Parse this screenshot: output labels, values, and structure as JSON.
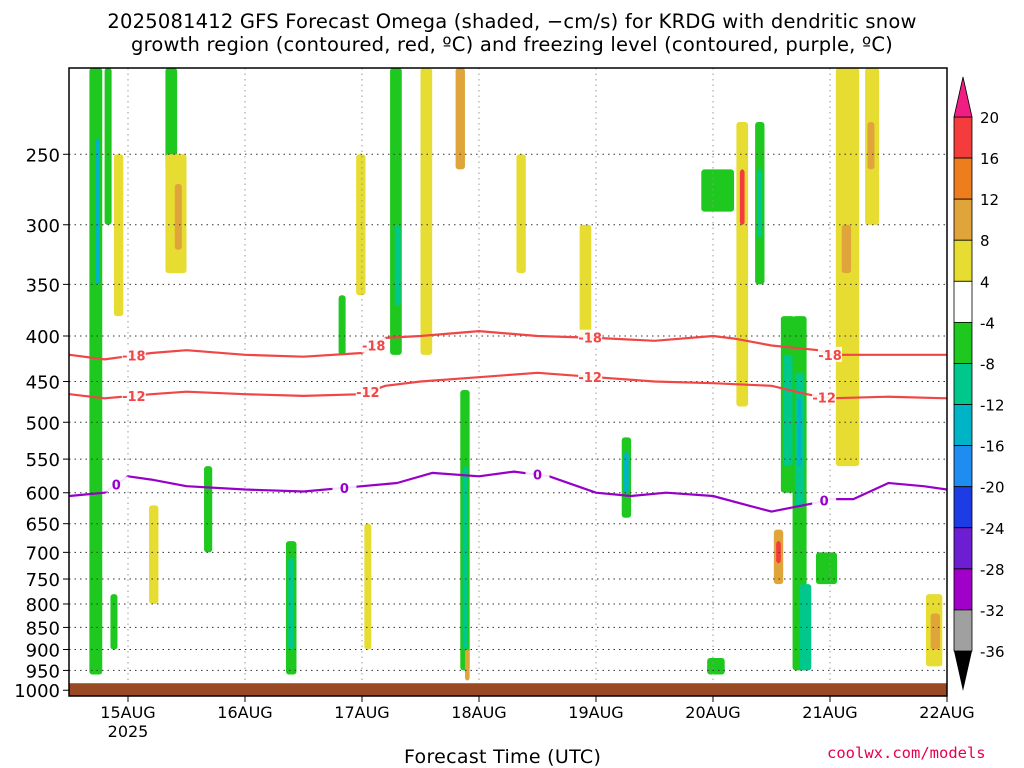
{
  "title": {
    "line1": "2025081412 GFS Forecast Omega (shaded, −cm/s) for KRDG with dendritic snow",
    "line2": "growth region (contoured, red, ºC) and freezing level (contoured, purple, ºC)"
  },
  "xlabel": "Forecast Time (UTC)",
  "credit": "coolwx.com/models",
  "chart_data": {
    "type": "heatmap",
    "x_unit": "forecast time (UTC)",
    "x_ticks": [
      {
        "t": 0.0,
        "label": "15AUG"
      },
      {
        "t": 1.0,
        "label": "16AUG"
      },
      {
        "t": 2.0,
        "label": "17AUG"
      },
      {
        "t": 3.0,
        "label": "18AUG"
      },
      {
        "t": 4.0,
        "label": "19AUG"
      },
      {
        "t": 5.0,
        "label": "20AUG"
      },
      {
        "t": 6.0,
        "label": "21AUG"
      },
      {
        "t": 7.0,
        "label": "22AUG"
      }
    ],
    "x_year_label": "2025",
    "xlim_days": [
      -0.5,
      7.0
    ],
    "y_label": "",
    "y_ticks": [
      250,
      300,
      350,
      400,
      450,
      500,
      550,
      600,
      650,
      700,
      750,
      800,
      850,
      900,
      950,
      1000
    ],
    "ylim_hpa": [
      200,
      1015
    ],
    "y_log": true,
    "grid": true,
    "ground_level_hpa": 982,
    "colorbar": {
      "ticks": [
        20,
        16,
        12,
        8,
        4,
        -4,
        -8,
        -12,
        -16,
        -20,
        -24,
        -28,
        -32,
        -36
      ],
      "bands": [
        {
          "from": 16,
          "to": 20,
          "color": "#f53c3c"
        },
        {
          "from": 12,
          "to": 16,
          "color": "#ee7d1e"
        },
        {
          "from": 8,
          "to": 12,
          "color": "#e0a53a"
        },
        {
          "from": 4,
          "to": 8,
          "color": "#e6dc32"
        },
        {
          "from": -4,
          "to": 4,
          "color": "#ffffff"
        },
        {
          "from": -8,
          "to": -4,
          "color": "#1ec81e"
        },
        {
          "from": -12,
          "to": -8,
          "color": "#00c88c"
        },
        {
          "from": -16,
          "to": -12,
          "color": "#00b4c8"
        },
        {
          "from": -20,
          "to": -16,
          "color": "#1e8cf0"
        },
        {
          "from": -24,
          "to": -20,
          "color": "#1e3ce6"
        },
        {
          "from": -28,
          "to": -24,
          "color": "#6e1ed2"
        },
        {
          "from": -32,
          "to": -28,
          "color": "#a000c8"
        },
        {
          "from": -36,
          "to": -32,
          "color": "#a0a0a0"
        }
      ],
      "top_arrow_color": "#f01e82",
      "bottom_arrow_color": "#000000"
    },
    "omega_cells": [
      {
        "t0": -0.33,
        "t1": -0.22,
        "p0": 200,
        "p1": 960,
        "v": -6
      },
      {
        "t0": -0.28,
        "t1": -0.24,
        "p0": 240,
        "p1": 350,
        "v": -14
      },
      {
        "t0": -0.2,
        "t1": -0.14,
        "p0": 200,
        "p1": 300,
        "v": -6
      },
      {
        "t0": -0.12,
        "t1": -0.04,
        "p0": 250,
        "p1": 380,
        "v": 5
      },
      {
        "t0": 0.32,
        "t1": 0.42,
        "p0": 200,
        "p1": 260,
        "v": -6
      },
      {
        "t0": 0.32,
        "t1": 0.5,
        "p0": 250,
        "p1": 340,
        "v": 5
      },
      {
        "t0": 0.4,
        "t1": 0.46,
        "p0": 270,
        "p1": 320,
        "v": 9
      },
      {
        "t0": 1.8,
        "t1": 1.86,
        "p0": 360,
        "p1": 420,
        "v": -6
      },
      {
        "t0": 2.24,
        "t1": 2.34,
        "p0": 200,
        "p1": 420,
        "v": -6
      },
      {
        "t0": 2.28,
        "t1": 2.33,
        "p0": 300,
        "p1": 370,
        "v": -12
      },
      {
        "t0": 2.5,
        "t1": 2.6,
        "p0": 200,
        "p1": 420,
        "v": 5
      },
      {
        "t0": 2.8,
        "t1": 2.88,
        "p0": 200,
        "p1": 260,
        "v": 9
      },
      {
        "t0": 3.86,
        "t1": 3.96,
        "p0": 300,
        "p1": 400,
        "v": 5
      },
      {
        "t0": 2.84,
        "t1": 2.92,
        "p0": 460,
        "p1": 950,
        "v": -6
      },
      {
        "t0": 2.86,
        "t1": 2.9,
        "p0": 560,
        "p1": 900,
        "v": -12
      },
      {
        "t0": 2.88,
        "t1": 2.92,
        "p0": 900,
        "p1": 975,
        "v": 9
      },
      {
        "t0": 1.35,
        "t1": 1.44,
        "p0": 680,
        "p1": 960,
        "v": -6
      },
      {
        "t0": 1.37,
        "t1": 1.42,
        "p0": 710,
        "p1": 900,
        "v": -12
      },
      {
        "t0": 4.22,
        "t1": 4.3,
        "p0": 520,
        "p1": 640,
        "v": -6
      },
      {
        "t0": 4.24,
        "t1": 4.28,
        "p0": 540,
        "p1": 600,
        "v": -14
      },
      {
        "t0": 4.95,
        "t1": 5.1,
        "p0": 920,
        "p1": 960,
        "v": -6
      },
      {
        "t0": 4.9,
        "t1": 5.18,
        "p0": 260,
        "p1": 290,
        "v": -6
      },
      {
        "t0": 5.2,
        "t1": 5.3,
        "p0": 230,
        "p1": 480,
        "v": 7
      },
      {
        "t0": 5.23,
        "t1": 5.27,
        "p0": 260,
        "p1": 300,
        "v": 18
      },
      {
        "t0": 5.36,
        "t1": 5.44,
        "p0": 230,
        "p1": 350,
        "v": -6
      },
      {
        "t0": 5.38,
        "t1": 5.42,
        "p0": 260,
        "p1": 310,
        "v": -10
      },
      {
        "t0": 5.58,
        "t1": 5.7,
        "p0": 380,
        "p1": 600,
        "v": -6
      },
      {
        "t0": 5.6,
        "t1": 5.68,
        "p0": 420,
        "p1": 560,
        "v": -10
      },
      {
        "t0": 5.68,
        "t1": 5.8,
        "p0": 380,
        "p1": 950,
        "v": -6
      },
      {
        "t0": 5.7,
        "t1": 5.78,
        "p0": 440,
        "p1": 620,
        "v": -12
      },
      {
        "t0": 5.72,
        "t1": 5.76,
        "p0": 470,
        "p1": 560,
        "v": -16
      },
      {
        "t0": 5.74,
        "t1": 5.84,
        "p0": 760,
        "p1": 950,
        "v": -12
      },
      {
        "t0": 5.52,
        "t1": 5.6,
        "p0": 660,
        "p1": 760,
        "v": 10
      },
      {
        "t0": 5.54,
        "t1": 5.58,
        "p0": 680,
        "p1": 720,
        "v": 18
      },
      {
        "t0": 5.88,
        "t1": 6.06,
        "p0": 700,
        "p1": 760,
        "v": -6
      },
      {
        "t0": 6.05,
        "t1": 6.25,
        "p0": 200,
        "p1": 560,
        "v": 5
      },
      {
        "t0": 6.1,
        "t1": 6.18,
        "p0": 300,
        "p1": 340,
        "v": 9
      },
      {
        "t0": 6.3,
        "t1": 6.42,
        "p0": 200,
        "p1": 300,
        "v": 5
      },
      {
        "t0": 6.32,
        "t1": 6.38,
        "p0": 230,
        "p1": 260,
        "v": 9
      },
      {
        "t0": 6.82,
        "t1": 6.96,
        "p0": 780,
        "p1": 940,
        "v": 7
      },
      {
        "t0": 6.86,
        "t1": 6.94,
        "p0": 820,
        "p1": 900,
        "v": 11
      },
      {
        "t0": 1.95,
        "t1": 2.03,
        "p0": 250,
        "p1": 360,
        "v": 5
      },
      {
        "t0": 3.32,
        "t1": 3.4,
        "p0": 250,
        "p1": 340,
        "v": 5
      },
      {
        "t0": 2.02,
        "t1": 2.08,
        "p0": 650,
        "p1": 900,
        "v": 5
      },
      {
        "t0": 0.18,
        "t1": 0.26,
        "p0": 620,
        "p1": 800,
        "v": 5
      },
      {
        "t0": -0.15,
        "t1": -0.09,
        "p0": 780,
        "p1": 900,
        "v": -6
      },
      {
        "t0": 0.65,
        "t1": 0.72,
        "p0": 560,
        "p1": 700,
        "v": -6
      }
    ],
    "contours": [
      {
        "name": "-18",
        "color": "#f04646",
        "t": [
          -0.5,
          -0.2,
          0.2,
          0.5,
          1.0,
          1.5,
          2.0,
          2.1,
          2.2,
          2.5,
          3.0,
          3.5,
          4.0,
          4.5,
          5.0,
          5.2,
          5.5,
          5.9,
          6.0,
          6.5,
          7.0
        ],
        "p_hpa": [
          420,
          425,
          418,
          415,
          420,
          422,
          418,
          410,
          402,
          400,
          395,
          400,
          402,
          405,
          400,
          403,
          410,
          415,
          420,
          420,
          420
        ],
        "labels": [
          {
            "t": 0.05,
            "text": "-18"
          },
          {
            "t": 2.1,
            "text": "-18"
          },
          {
            "t": 3.95,
            "text": "-18"
          },
          {
            "t": 6.0,
            "text": "-18"
          }
        ]
      },
      {
        "name": "-12",
        "color": "#f04646",
        "t": [
          -0.5,
          -0.2,
          0.2,
          0.5,
          1.0,
          1.5,
          2.0,
          2.2,
          2.5,
          3.0,
          3.5,
          4.0,
          4.5,
          5.0,
          5.5,
          5.8,
          6.0,
          6.5,
          7.0
        ],
        "p_hpa": [
          465,
          470,
          465,
          462,
          465,
          467,
          465,
          455,
          450,
          445,
          440,
          445,
          450,
          452,
          455,
          465,
          470,
          468,
          470
        ],
        "labels": [
          {
            "t": 0.05,
            "text": "-12"
          },
          {
            "t": 2.05,
            "text": "-12"
          },
          {
            "t": 3.95,
            "text": "-12"
          },
          {
            "t": 5.95,
            "text": "-12"
          }
        ]
      },
      {
        "name": "0",
        "color": "#9600c8",
        "t": [
          -0.5,
          -0.2,
          0.0,
          0.2,
          0.5,
          1.0,
          1.5,
          2.0,
          2.3,
          2.6,
          3.0,
          3.3,
          3.6,
          4.0,
          4.3,
          4.6,
          5.0,
          5.3,
          5.5,
          5.9,
          6.0,
          6.2,
          6.5,
          6.8,
          7.0
        ],
        "p_hpa": [
          605,
          600,
          575,
          580,
          590,
          595,
          598,
          590,
          585,
          570,
          575,
          568,
          575,
          600,
          605,
          600,
          605,
          620,
          630,
          615,
          610,
          610,
          585,
          590,
          595
        ],
        "labels": [
          {
            "t": -0.1,
            "text": "0"
          },
          {
            "t": 1.85,
            "text": "0"
          },
          {
            "t": 3.5,
            "text": "0"
          },
          {
            "t": 5.95,
            "text": "0"
          }
        ]
      }
    ]
  }
}
